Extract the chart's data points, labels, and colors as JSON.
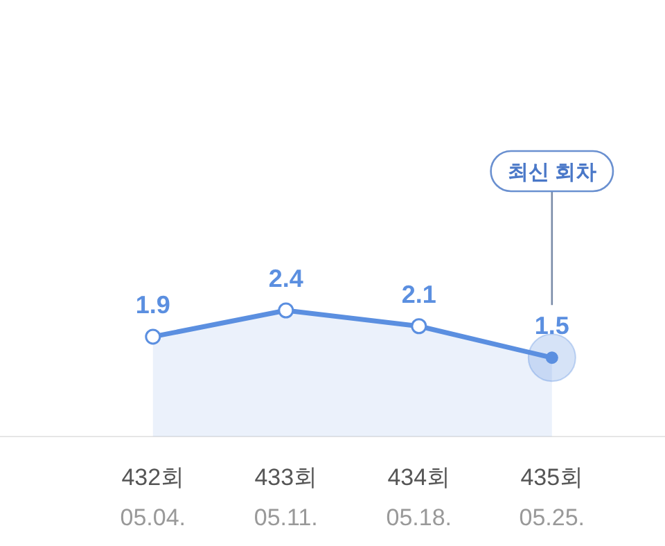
{
  "chart_data": {
    "type": "area",
    "categories": [
      null,
      "432회\n05.04.",
      "433회\n05.11.",
      "434회\n05.18.",
      "435회\n05.25."
    ],
    "series": [
      {
        "color": "#5b8fe0",
        "values": [
          null,
          1.9,
          2.4,
          2.1,
          1.5
        ]
      }
    ],
    "data_labels": true,
    "marker": "circle",
    "tick_labels": "x",
    "annotations": [
      "최신 회차"
    ]
  }
}
